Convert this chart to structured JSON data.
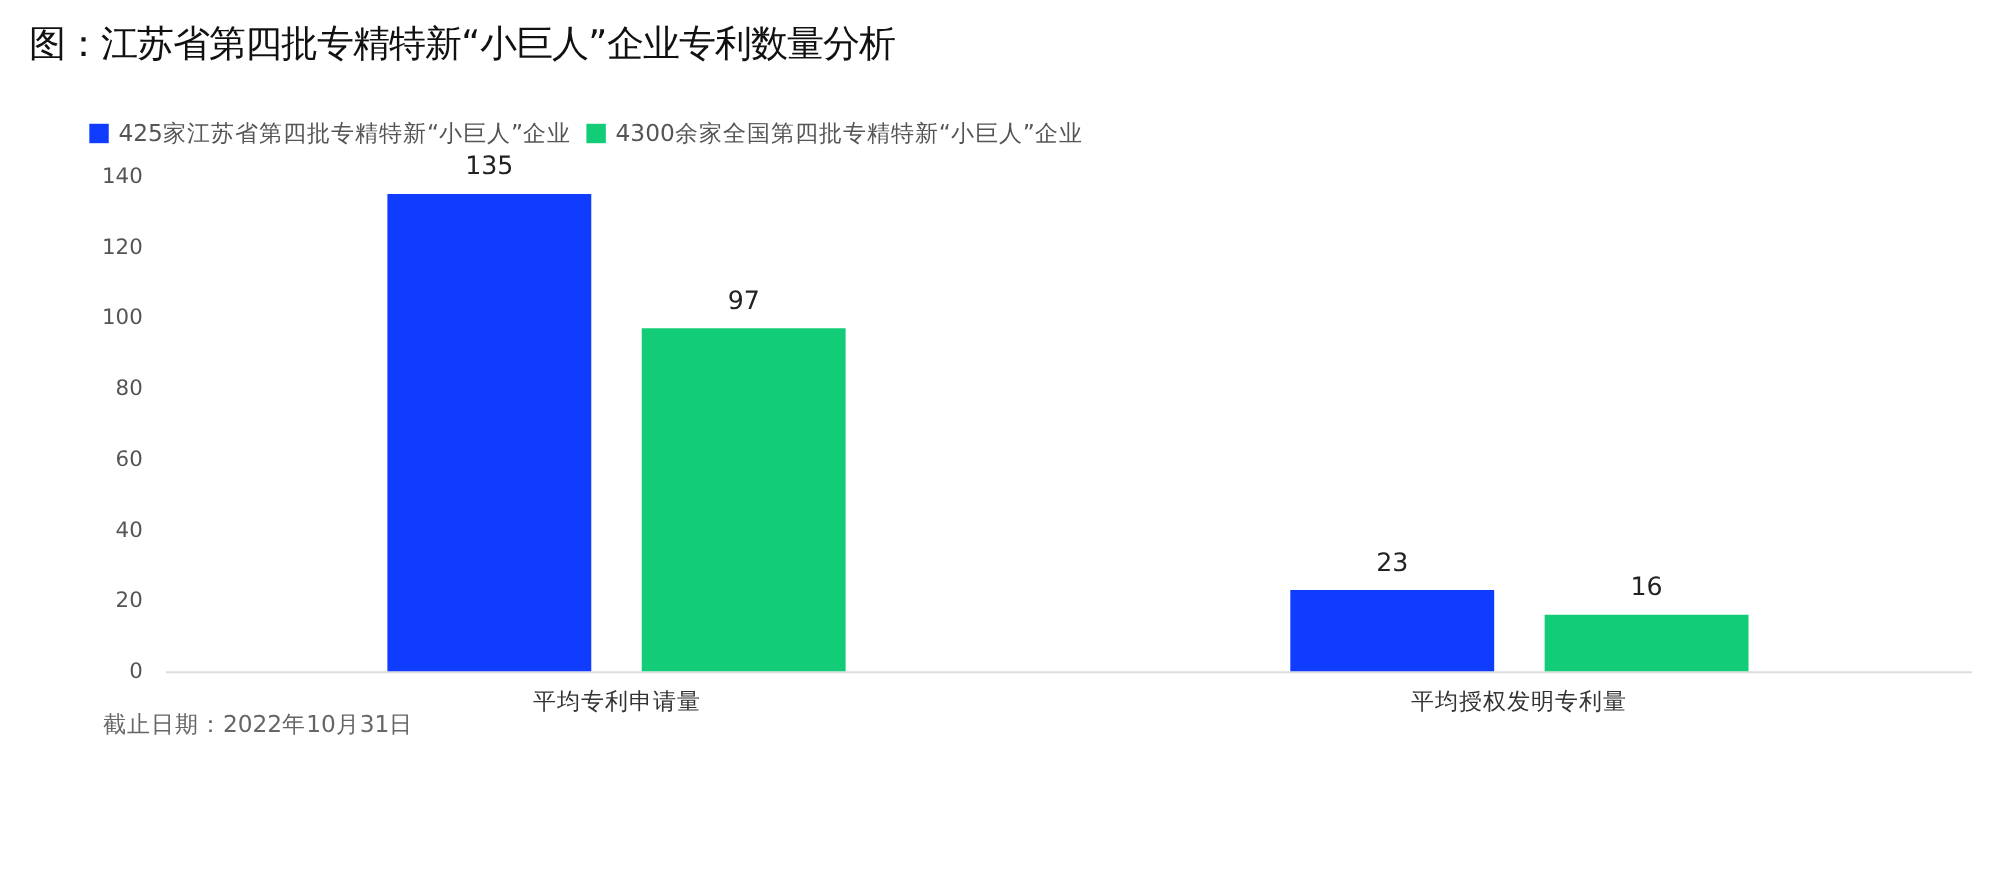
{
  "chart_data": {
    "type": "bar",
    "title": "图：江苏省第四批专精特新“小巨人”企业专利数量分析",
    "categories": [
      "平均专利申请量",
      "平均授权发明专利量"
    ],
    "series": [
      {
        "name": "425家江苏省第四批专精特新“小巨人”企业",
        "color": "#0f3cff",
        "values": [
          135,
          23
        ]
      },
      {
        "name": "4300余家全国第四批专精特新“小巨人”企业",
        "color": "#13cc78",
        "values": [
          97,
          16
        ]
      }
    ],
    "ylim": [
      0,
      140
    ],
    "yticks": [
      0,
      20,
      40,
      60,
      80,
      100,
      120,
      140
    ],
    "grid": false,
    "legend": "top left",
    "data_labels": true,
    "annotations": [
      "截止日期：2022年10月31日"
    ]
  }
}
